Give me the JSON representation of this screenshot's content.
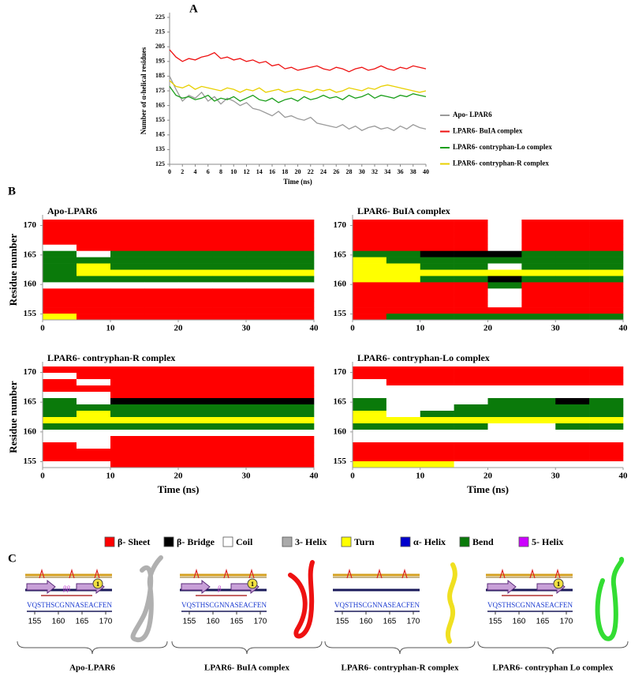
{
  "panel_labels": [
    "A",
    "B",
    "C"
  ],
  "chart_data": [
    {
      "type": "line",
      "y_label": "Number of α-helical residues",
      "x_label": "Time (ns)",
      "x": [
        0,
        1,
        2,
        3,
        4,
        5,
        6,
        7,
        8,
        9,
        10,
        11,
        12,
        13,
        14,
        15,
        16,
        17,
        18,
        19,
        20,
        21,
        22,
        23,
        24,
        25,
        26,
        27,
        28,
        29,
        30,
        31,
        32,
        33,
        34,
        35,
        36,
        37,
        38,
        39,
        40
      ],
      "xlim": [
        0,
        40
      ],
      "xticks": [
        0,
        2,
        4,
        6,
        8,
        10,
        12,
        14,
        16,
        18,
        20,
        22,
        24,
        26,
        28,
        30,
        32,
        34,
        36,
        38,
        40
      ],
      "ylim": [
        125,
        225
      ],
      "yticks": [
        125,
        135,
        145,
        155,
        165,
        175,
        185,
        195,
        205,
        215,
        225
      ],
      "legend": "right",
      "series": [
        {
          "name": "Apo- LPAR6",
          "color": "#9a9a9a",
          "values": [
            185,
            176,
            168,
            172,
            170,
            174,
            168,
            171,
            166,
            170,
            168,
            165,
            167,
            163,
            162,
            160,
            158,
            161,
            157,
            158,
            156,
            155,
            157,
            153,
            152,
            151,
            150,
            152,
            149,
            151,
            148,
            150,
            151,
            149,
            150,
            148,
            151,
            149,
            152,
            150,
            149
          ]
        },
        {
          "name": "LPAR6- BuIA complex",
          "color": "#ee1111",
          "values": [
            203,
            198,
            195,
            197,
            196,
            198,
            199,
            201,
            197,
            198,
            196,
            197,
            195,
            196,
            194,
            195,
            192,
            193,
            190,
            191,
            189,
            190,
            191,
            192,
            190,
            189,
            191,
            190,
            188,
            190,
            191,
            189,
            190,
            192,
            190,
            189,
            191,
            190,
            192,
            191,
            190
          ]
        },
        {
          "name": "LPAR6- contryphan-Lo complex",
          "color": "#1a9e1a",
          "values": [
            178,
            172,
            170,
            171,
            169,
            170,
            172,
            168,
            170,
            169,
            171,
            168,
            170,
            172,
            169,
            168,
            170,
            167,
            169,
            170,
            168,
            171,
            169,
            170,
            172,
            170,
            171,
            169,
            172,
            170,
            171,
            173,
            170,
            172,
            171,
            170,
            172,
            171,
            173,
            172,
            171
          ]
        },
        {
          "name": "LPAR6- contryphan-R complex",
          "color": "#e8d000",
          "values": [
            182,
            178,
            177,
            179,
            176,
            178,
            177,
            176,
            175,
            177,
            176,
            174,
            176,
            175,
            177,
            174,
            175,
            176,
            174,
            175,
            176,
            175,
            174,
            176,
            175,
            176,
            174,
            175,
            177,
            176,
            175,
            177,
            176,
            178,
            179,
            178,
            177,
            176,
            175,
            174,
            175
          ]
        }
      ]
    },
    {
      "type": "heatmap",
      "title": "Apo-LPAR6",
      "y_label": "Residue number",
      "xlim": [
        0,
        40
      ],
      "xticks": [
        0,
        10,
        20,
        30,
        40
      ],
      "ylim": [
        154,
        171
      ],
      "yticks": [
        155,
        160,
        165,
        170
      ],
      "rows": [
        [
          0,
          0,
          0,
          0,
          0,
          0,
          0,
          0
        ],
        [
          0,
          0,
          0,
          0,
          0,
          0,
          0,
          0
        ],
        [
          0,
          0,
          0,
          0,
          0,
          0,
          0,
          0
        ],
        [
          0,
          0,
          0,
          0,
          0,
          0,
          0,
          0
        ],
        [
          2,
          0,
          0,
          0,
          0,
          0,
          0,
          0
        ],
        [
          6,
          2,
          6,
          6,
          6,
          6,
          6,
          6
        ],
        [
          6,
          6,
          6,
          6,
          6,
          6,
          6,
          6
        ],
        [
          6,
          4,
          6,
          6,
          6,
          6,
          6,
          6
        ],
        [
          6,
          4,
          4,
          4,
          4,
          4,
          4,
          4
        ],
        [
          6,
          6,
          6,
          6,
          6,
          6,
          6,
          6
        ],
        [
          2,
          2,
          2,
          2,
          2,
          2,
          2,
          2
        ],
        [
          0,
          0,
          0,
          0,
          0,
          0,
          0,
          0
        ],
        [
          0,
          0,
          0,
          0,
          0,
          0,
          0,
          0
        ],
        [
          0,
          0,
          0,
          0,
          0,
          0,
          0,
          0
        ],
        [
          0,
          0,
          0,
          0,
          0,
          0,
          0,
          0
        ],
        [
          4,
          0,
          0,
          0,
          0,
          0,
          0,
          0
        ]
      ]
    },
    {
      "type": "heatmap",
      "title": "LPAR6- BuIA complex",
      "xlim": [
        0,
        40
      ],
      "xticks": [
        0,
        10,
        20,
        30,
        40
      ],
      "ylim": [
        154,
        171
      ],
      "yticks": [
        155,
        160,
        165,
        170
      ],
      "rows": [
        [
          0,
          0,
          0,
          0,
          2,
          0,
          0,
          0
        ],
        [
          0,
          0,
          0,
          0,
          2,
          0,
          0,
          0
        ],
        [
          0,
          0,
          0,
          0,
          2,
          0,
          0,
          0
        ],
        [
          0,
          0,
          0,
          0,
          2,
          0,
          0,
          0
        ],
        [
          0,
          0,
          0,
          0,
          2,
          0,
          0,
          0
        ],
        [
          6,
          6,
          1,
          1,
          1,
          6,
          6,
          6
        ],
        [
          4,
          6,
          6,
          6,
          6,
          6,
          6,
          6
        ],
        [
          4,
          4,
          6,
          6,
          2,
          6,
          6,
          6
        ],
        [
          4,
          4,
          4,
          4,
          4,
          4,
          4,
          4
        ],
        [
          4,
          4,
          6,
          6,
          1,
          6,
          6,
          6
        ],
        [
          0,
          0,
          0,
          0,
          6,
          0,
          0,
          0
        ],
        [
          0,
          0,
          0,
          0,
          2,
          0,
          0,
          0
        ],
        [
          0,
          0,
          0,
          0,
          2,
          0,
          0,
          0
        ],
        [
          0,
          0,
          0,
          0,
          2,
          0,
          0,
          0
        ],
        [
          0,
          0,
          0,
          0,
          0,
          0,
          0,
          0
        ],
        [
          0,
          6,
          6,
          6,
          6,
          6,
          6,
          6
        ]
      ]
    },
    {
      "type": "heatmap",
      "title": "LPAR6- contryphan-R complex",
      "y_label": "Residue number",
      "x_label": "Time (ns)",
      "xlim": [
        0,
        40
      ],
      "xticks": [
        0,
        10,
        20,
        30,
        40
      ],
      "ylim": [
        154,
        171
      ],
      "yticks": [
        155,
        160,
        165,
        170
      ],
      "rows": [
        [
          0,
          0,
          0,
          0,
          0,
          0,
          0,
          0
        ],
        [
          2,
          0,
          0,
          0,
          0,
          0,
          0,
          0
        ],
        [
          0,
          2,
          0,
          0,
          0,
          0,
          0,
          0
        ],
        [
          0,
          0,
          0,
          0,
          0,
          0,
          0,
          0
        ],
        [
          2,
          2,
          0,
          0,
          0,
          0,
          0,
          0
        ],
        [
          6,
          2,
          1,
          1,
          1,
          1,
          1,
          1
        ],
        [
          6,
          6,
          6,
          6,
          6,
          6,
          6,
          6
        ],
        [
          6,
          4,
          6,
          6,
          6,
          6,
          6,
          6
        ],
        [
          4,
          4,
          4,
          4,
          4,
          4,
          4,
          4
        ],
        [
          6,
          6,
          6,
          6,
          6,
          6,
          6,
          6
        ],
        [
          2,
          2,
          2,
          2,
          2,
          2,
          2,
          2
        ],
        [
          2,
          2,
          0,
          0,
          0,
          0,
          0,
          0
        ],
        [
          0,
          2,
          0,
          0,
          0,
          0,
          0,
          0
        ],
        [
          0,
          0,
          0,
          0,
          0,
          0,
          0,
          0
        ],
        [
          0,
          0,
          0,
          0,
          0,
          0,
          0,
          0
        ],
        [
          2,
          2,
          0,
          0,
          0,
          0,
          0,
          0
        ]
      ]
    },
    {
      "type": "heatmap",
      "title": "LPAR6- contryphan-Lo complex",
      "x_label": "Time (ns)",
      "xlim": [
        0,
        40
      ],
      "xticks": [
        0,
        10,
        20,
        30,
        40
      ],
      "ylim": [
        154,
        171
      ],
      "yticks": [
        155,
        160,
        165,
        170
      ],
      "rows": [
        [
          0,
          0,
          0,
          0,
          0,
          0,
          0,
          0
        ],
        [
          0,
          0,
          0,
          0,
          0,
          0,
          0,
          0
        ],
        [
          2,
          0,
          0,
          0,
          0,
          0,
          0,
          0
        ],
        [
          2,
          2,
          2,
          2,
          2,
          2,
          2,
          2
        ],
        [
          2,
          2,
          2,
          2,
          2,
          2,
          2,
          2
        ],
        [
          6,
          2,
          2,
          2,
          6,
          6,
          1,
          6
        ],
        [
          6,
          2,
          2,
          6,
          6,
          6,
          6,
          6
        ],
        [
          4,
          2,
          6,
          6,
          6,
          6,
          6,
          6
        ],
        [
          4,
          4,
          4,
          4,
          4,
          4,
          4,
          4
        ],
        [
          6,
          6,
          6,
          6,
          2,
          2,
          6,
          6
        ],
        [
          2,
          2,
          2,
          2,
          2,
          2,
          2,
          2
        ],
        [
          2,
          2,
          2,
          2,
          2,
          2,
          2,
          2
        ],
        [
          0,
          0,
          0,
          0,
          0,
          0,
          0,
          0
        ],
        [
          0,
          0,
          0,
          0,
          0,
          0,
          0,
          0
        ],
        [
          0,
          0,
          0,
          0,
          0,
          0,
          0,
          0
        ],
        [
          4,
          4,
          4,
          2,
          2,
          2,
          2,
          2
        ]
      ]
    }
  ],
  "panel_b_legend": {
    "names": [
      "β- Sheet",
      "β- Bridge",
      "Coil",
      "3- Helix",
      "Turn",
      "α- Helix",
      "Bend",
      "5- Helix"
    ],
    "colors": [
      "#ff0000",
      "#000000",
      "#ffffff",
      "#aaaaaa",
      "#ffff00",
      "#0000cc",
      "#0a7a0a",
      "#cc00ff"
    ]
  },
  "panel_c": {
    "sequence": "VQSTHSCGNNASEACFEN",
    "ticks": [
      "155",
      "160",
      "165",
      "170"
    ],
    "complexes": [
      {
        "name": "Apo-LPAR6",
        "color": "#b0b0b0",
        "annotation": "ββ",
        "marker": "1"
      },
      {
        "name": "LPAR6- BuIA complex",
        "color": "#ee1111",
        "annotation": "β",
        "marker": "1"
      },
      {
        "name": "LPAR6- contryphan-R complex",
        "color": "#f0e020"
      },
      {
        "name": "LPAR6- contryphan Lo complex",
        "color": "#33dd33",
        "marker": "1"
      }
    ]
  }
}
